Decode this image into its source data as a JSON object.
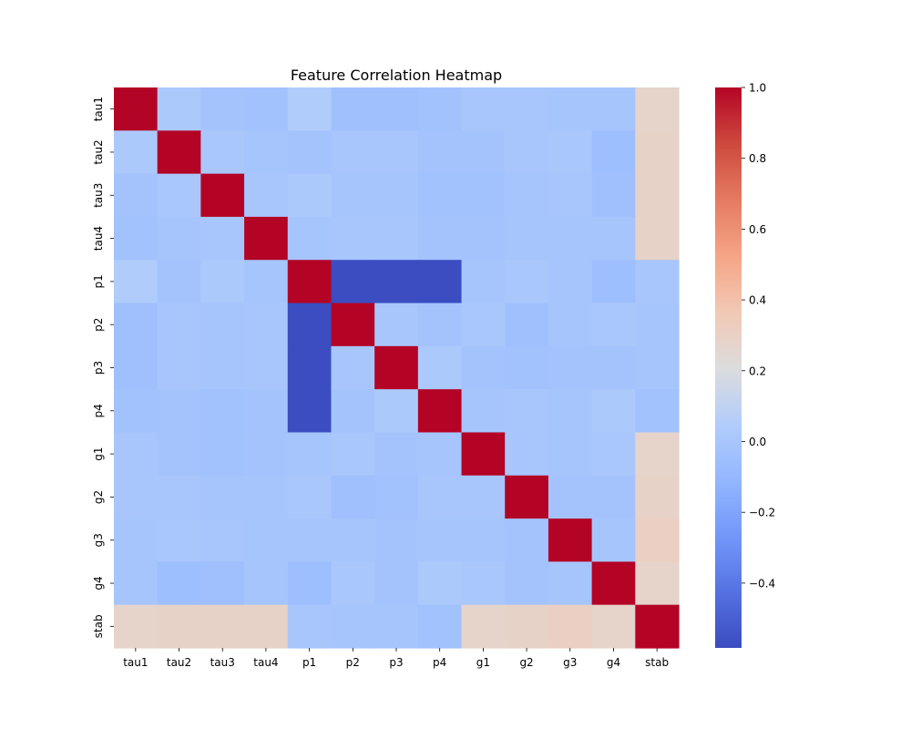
{
  "chart_data": {
    "type": "heatmap",
    "title": "Feature Correlation Heatmap",
    "xlabel": "",
    "ylabel": "",
    "x_categories": [
      "tau1",
      "tau2",
      "tau3",
      "tau4",
      "p1",
      "p2",
      "p3",
      "p4",
      "g1",
      "g2",
      "g3",
      "g4",
      "stab"
    ],
    "y_categories": [
      "tau1",
      "tau2",
      "tau3",
      "tau4",
      "p1",
      "p2",
      "p3",
      "p4",
      "g1",
      "g2",
      "g3",
      "g4",
      "stab"
    ],
    "matrix": [
      [
        1.0,
        0.02,
        -0.02,
        -0.03,
        0.04,
        -0.04,
        -0.04,
        -0.03,
        0.0,
        0.0,
        -0.01,
        -0.01,
        0.28
      ],
      [
        0.02,
        1.0,
        0.01,
        -0.01,
        -0.02,
        0.0,
        0.0,
        -0.02,
        -0.02,
        0.0,
        0.01,
        -0.05,
        0.29
      ],
      [
        -0.02,
        0.01,
        1.0,
        0.0,
        0.02,
        -0.01,
        -0.01,
        -0.03,
        -0.03,
        -0.01,
        0.0,
        -0.04,
        0.29
      ],
      [
        -0.03,
        -0.01,
        0.0,
        1.0,
        -0.01,
        0.0,
        0.0,
        -0.02,
        -0.02,
        -0.01,
        -0.01,
        -0.01,
        0.29
      ],
      [
        0.04,
        -0.02,
        0.02,
        -0.01,
        1.0,
        -0.58,
        -0.58,
        -0.58,
        -0.01,
        0.01,
        -0.01,
        -0.05,
        0.0
      ],
      [
        -0.04,
        0.0,
        -0.01,
        0.0,
        -0.58,
        1.0,
        0.0,
        -0.02,
        0.01,
        -0.04,
        -0.01,
        0.01,
        -0.01
      ],
      [
        -0.04,
        0.0,
        -0.01,
        0.0,
        -0.58,
        0.0,
        1.0,
        0.02,
        -0.02,
        -0.03,
        -0.02,
        -0.02,
        -0.01
      ],
      [
        -0.03,
        -0.02,
        -0.03,
        -0.02,
        -0.58,
        -0.02,
        0.02,
        1.0,
        -0.01,
        0.0,
        -0.01,
        0.02,
        -0.03
      ],
      [
        0.0,
        -0.02,
        -0.03,
        -0.02,
        -0.01,
        0.01,
        -0.02,
        -0.01,
        1.0,
        0.0,
        -0.01,
        0.01,
        0.28
      ],
      [
        0.0,
        0.0,
        -0.01,
        -0.01,
        0.01,
        -0.04,
        -0.03,
        0.0,
        0.0,
        1.0,
        -0.02,
        -0.02,
        0.29
      ],
      [
        -0.01,
        0.01,
        0.0,
        -0.01,
        -0.01,
        -0.01,
        -0.02,
        -0.01,
        -0.01,
        -0.02,
        1.0,
        -0.01,
        0.31
      ],
      [
        -0.01,
        -0.05,
        -0.04,
        -0.01,
        -0.05,
        0.01,
        -0.02,
        0.02,
        0.01,
        -0.02,
        -0.01,
        1.0,
        0.28
      ],
      [
        0.28,
        0.29,
        0.29,
        0.29,
        0.0,
        -0.01,
        -0.01,
        -0.03,
        0.28,
        0.29,
        0.31,
        0.28,
        1.0
      ]
    ],
    "colormap": "coolwarm",
    "vmin": -0.583,
    "vmax": 1.0,
    "colorbar_ticks": [
      1.0,
      0.8,
      0.6,
      0.4,
      0.2,
      0.0,
      -0.2,
      -0.4
    ],
    "colorbar_tick_labels": [
      "1.0",
      "0.8",
      "0.6",
      "0.4",
      "0.2",
      "0.0",
      "−0.2",
      "−0.4"
    ]
  }
}
